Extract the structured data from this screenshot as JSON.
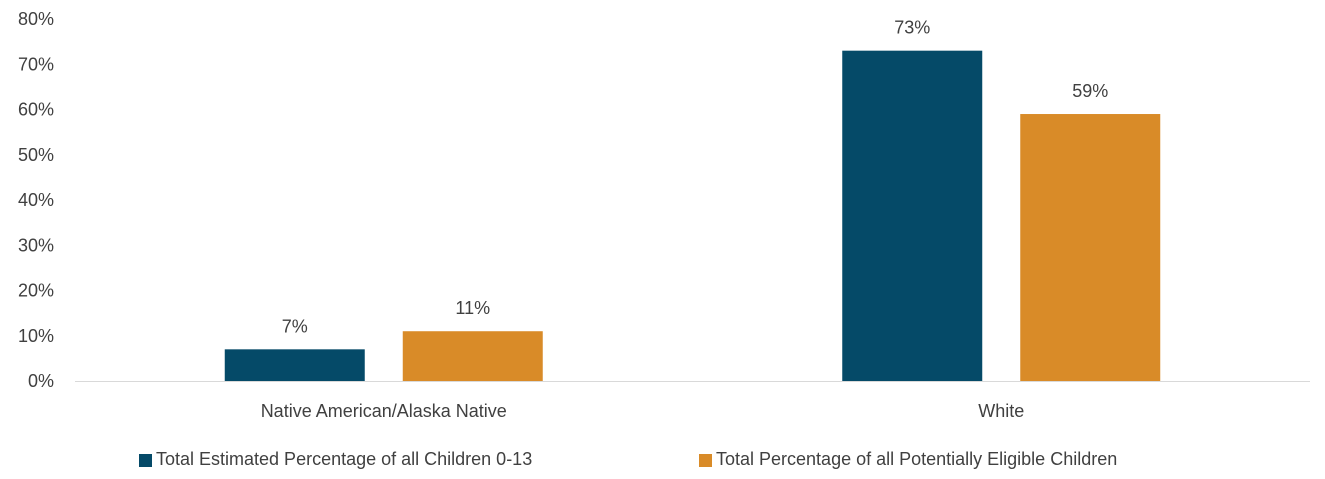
{
  "chart_data": {
    "type": "bar",
    "categories": [
      "Native American/Alaska Native",
      "White"
    ],
    "series": [
      {
        "name": "Total Estimated Percentage of all Children 0-13",
        "values": [
          7,
          73
        ],
        "labels": [
          "7%",
          "73%"
        ],
        "color": "#054a68"
      },
      {
        "name": "Total Percentage of all Potentially Eligible Children",
        "values": [
          11,
          59
        ],
        "labels": [
          "11%",
          "59%"
        ],
        "color": "#d98b28"
      }
    ],
    "yticks": [
      "0%",
      "10%",
      "20%",
      "30%",
      "40%",
      "50%",
      "60%",
      "70%",
      "80%"
    ],
    "ylim": [
      0,
      80
    ],
    "grid": false,
    "legend": "bottom",
    "axis_color": "#d9d9d9"
  }
}
